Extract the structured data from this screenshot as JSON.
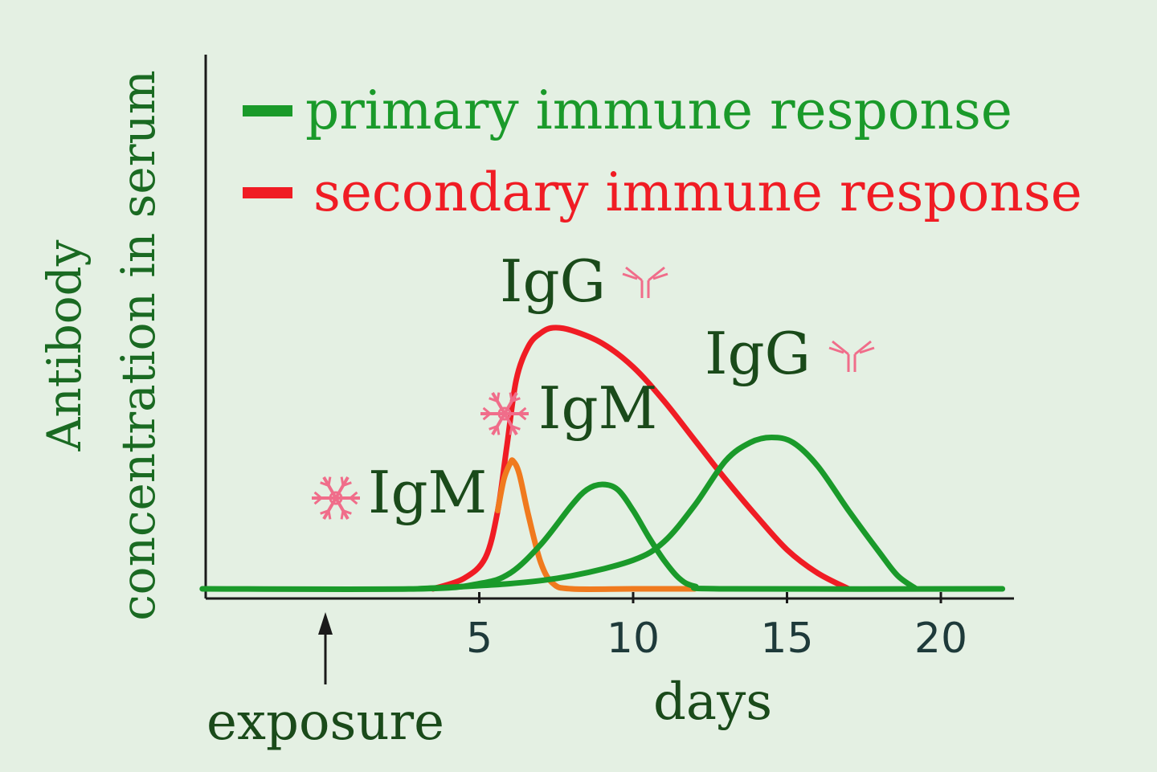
{
  "chart_data": {
    "type": "line",
    "xlabel": "days",
    "ylabel_line1": "Antibody",
    "ylabel_line2": "concentration in serum",
    "x_ticks": [
      5,
      10,
      15,
      20
    ],
    "xlim": [
      -4,
      22
    ],
    "ylim": [
      0,
      1
    ],
    "exposure": {
      "label": "exposure",
      "x": 0
    },
    "legend": [
      {
        "label": "primary immune response",
        "color": "#1a9a2a"
      },
      {
        "label": "secondary immune response",
        "color": "#f01c24"
      }
    ],
    "series": [
      {
        "name": "secondary immune response",
        "color": "#f01c24",
        "x": [
          3.5,
          4.5,
          5.2,
          5.6,
          5.9,
          6.2,
          6.6,
          7.0,
          7.4,
          8.0,
          9.0,
          10.0,
          11.0,
          12.0,
          13.0,
          14.0,
          15.0,
          16.0,
          17.0
        ],
        "y": [
          0.0,
          0.04,
          0.12,
          0.3,
          0.55,
          0.8,
          0.93,
          0.98,
          1.0,
          0.99,
          0.94,
          0.85,
          0.72,
          0.57,
          0.42,
          0.28,
          0.15,
          0.06,
          0.0
        ]
      },
      {
        "name": "secondary IgM",
        "color": "#f07a1e",
        "x": [
          5.6,
          5.8,
          6.0,
          6.1,
          6.3,
          6.6,
          7.0,
          7.4,
          8.0,
          10.0,
          12.0
        ],
        "y": [
          0.3,
          0.42,
          0.48,
          0.49,
          0.44,
          0.28,
          0.1,
          0.02,
          0.0,
          0.0,
          0.0
        ]
      },
      {
        "name": "primary IgM",
        "color": "#1a9a2a",
        "x": [
          -4,
          3.0,
          5.0,
          6.0,
          7.0,
          8.0,
          8.5,
          9.0,
          9.5,
          10.0,
          10.5,
          11.0,
          11.5,
          12.0,
          13.0,
          22
        ],
        "y": [
          0.0,
          0.0,
          0.02,
          0.06,
          0.17,
          0.32,
          0.38,
          0.4,
          0.38,
          0.3,
          0.2,
          0.11,
          0.04,
          0.01,
          0.0,
          0.0
        ]
      },
      {
        "name": "primary IgG",
        "color": "#1a9a2a",
        "x": [
          3.0,
          6.0,
          8.0,
          10.0,
          11.0,
          12.0,
          13.0,
          13.8,
          14.5,
          15.2,
          16.0,
          17.0,
          18.0,
          18.6,
          19.2
        ],
        "y": [
          0.0,
          0.02,
          0.05,
          0.11,
          0.18,
          0.32,
          0.49,
          0.56,
          0.58,
          0.56,
          0.47,
          0.3,
          0.14,
          0.05,
          0.0
        ]
      }
    ],
    "annotations": [
      {
        "text": "IgG",
        "icon": "antibody-icon",
        "target": "secondary peak",
        "color": "#1a4a1a"
      },
      {
        "text": "IgG",
        "icon": "antibody-icon",
        "target": "primary IgG peak",
        "color": "#1a4a1a"
      },
      {
        "text": "IgM",
        "icon": "snowflake-icon",
        "target": "primary IgM peak",
        "color": "#1a4a1a"
      },
      {
        "text": "IgM",
        "icon": "snowflake-icon",
        "target": "secondary IgM peak",
        "color": "#1a4a1a"
      }
    ],
    "colors": {
      "background": "#e4f0e3",
      "axis": "#1a1a1a",
      "text_dark": "#1a4a1a",
      "tick_text": "#1e3a3a",
      "ylabel": "#1a6a22",
      "icon": "#f06d8a"
    }
  }
}
